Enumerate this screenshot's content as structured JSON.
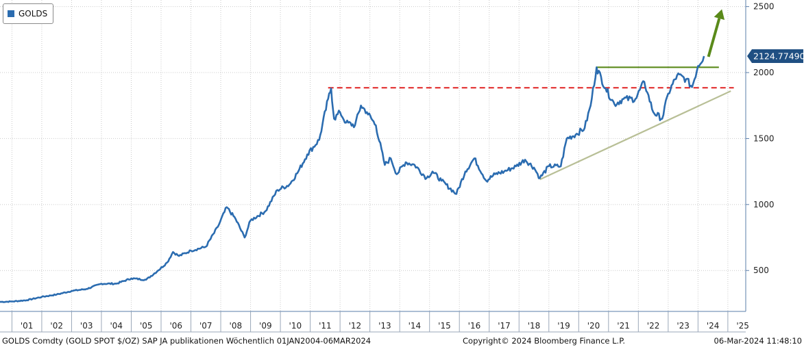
{
  "chart_data": {
    "type": "line",
    "legend": {
      "label": "GOLDS",
      "color": "#2b6cb0",
      "placement": "top-left"
    },
    "x_ticks": [
      "'01",
      "'02",
      "'03",
      "'04",
      "'05",
      "'06",
      "'07",
      "'08",
      "'09",
      "'10",
      "'11",
      "'12",
      "'13",
      "'14",
      "'15",
      "'16",
      "'17",
      "'18",
      "'19",
      "'20",
      "'21",
      "'22",
      "'23",
      "'24",
      "'25"
    ],
    "y_ticks": [
      500,
      1000,
      1500,
      2000,
      2500
    ],
    "xlim": [
      2000.6,
      2025.6
    ],
    "ylim": [
      190,
      2550
    ],
    "last_value": 2124.774902,
    "last_value_label": "2124.774902",
    "grid": true,
    "series": [
      {
        "name": "GOLDS",
        "color": "#2b6cb0",
        "x": [
          2000.6,
          2001.0,
          2001.5,
          2002.0,
          2002.5,
          2003.0,
          2003.5,
          2004.0,
          2004.5,
          2005.0,
          2005.5,
          2005.9,
          2006.2,
          2006.4,
          2006.6,
          2007.0,
          2007.5,
          2007.9,
          2008.2,
          2008.5,
          2008.8,
          2009.0,
          2009.5,
          2009.9,
          2010.3,
          2010.6,
          2010.9,
          2011.3,
          2011.6,
          2011.7,
          2011.8,
          2012.0,
          2012.2,
          2012.5,
          2012.7,
          2012.9,
          2013.2,
          2013.5,
          2013.7,
          2013.9,
          2014.2,
          2014.5,
          2014.9,
          2015.1,
          2015.4,
          2015.9,
          2016.2,
          2016.5,
          2016.9,
          2017.2,
          2017.5,
          2017.9,
          2018.2,
          2018.5,
          2018.7,
          2019.0,
          2019.4,
          2019.6,
          2019.9,
          2020.2,
          2020.4,
          2020.6,
          2020.9,
          2021.2,
          2021.5,
          2021.9,
          2022.2,
          2022.3,
          2022.5,
          2022.8,
          2023.0,
          2023.3,
          2023.6,
          2023.8,
          2024.0,
          2024.2
        ],
        "values": [
          262,
          265,
          275,
          300,
          318,
          345,
          360,
          400,
          400,
          440,
          430,
          500,
          560,
          640,
          610,
          650,
          680,
          830,
          980,
          890,
          750,
          880,
          950,
          1110,
          1150,
          1250,
          1380,
          1490,
          1800,
          1880,
          1650,
          1700,
          1620,
          1600,
          1750,
          1700,
          1600,
          1300,
          1350,
          1230,
          1320,
          1300,
          1200,
          1250,
          1180,
          1080,
          1250,
          1350,
          1180,
          1230,
          1250,
          1290,
          1340,
          1280,
          1200,
          1290,
          1290,
          1500,
          1530,
          1580,
          1750,
          2040,
          1880,
          1760,
          1800,
          1800,
          1930,
          1850,
          1700,
          1650,
          1840,
          1980,
          1950,
          1890,
          2050,
          2124.774902
        ]
      }
    ],
    "annotations": [
      {
        "kind": "dashed-horizontal",
        "color": "#e02020",
        "y": 1885,
        "x_from": 2011.6,
        "x_to": 2025.2
      },
      {
        "kind": "horizontal",
        "color": "#5a8a1a",
        "y": 2040,
        "x_from": 2020.6,
        "x_to": 2024.7
      },
      {
        "kind": "trendline",
        "color": "#b8bf96",
        "from": [
          2018.7,
          1190
        ],
        "to": [
          2025.1,
          1860
        ]
      },
      {
        "kind": "arrow",
        "color": "#5a8a1a",
        "from": [
          2024.35,
          2120
        ],
        "to": [
          2024.8,
          2480
        ]
      }
    ]
  },
  "footer": {
    "source": "GOLDS Comdty (GOLD SPOT $/OZ) SAP JA publikationen  Wöchentlich 01JAN2004-06MAR2024",
    "copyright": "Copyright© 2024 Bloomberg Finance L.P.",
    "timestamp": "06-Mar-2024 11:48:10"
  }
}
